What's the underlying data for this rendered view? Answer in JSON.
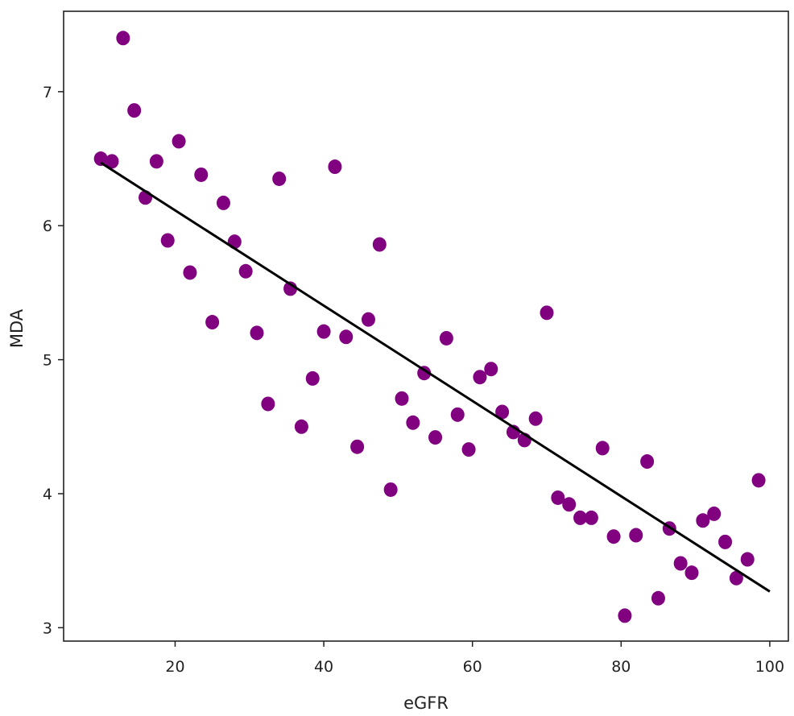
{
  "chart_data": {
    "type": "scatter",
    "title": "",
    "xlabel": "eGFR",
    "ylabel": "MDA",
    "xlim": [
      5,
      102.5
    ],
    "ylim": [
      2.9,
      7.6
    ],
    "xticks": [
      20,
      40,
      60,
      80,
      100
    ],
    "yticks": [
      3,
      4,
      5,
      6,
      7
    ],
    "xtick_labels": [
      "20",
      "40",
      "60",
      "80",
      "100"
    ],
    "ytick_labels": [
      "3",
      "4",
      "5",
      "6",
      "7"
    ],
    "grid": false,
    "point_color": "#800080",
    "line_color": "#000000",
    "points": [
      {
        "x": 10.0,
        "y": 6.5
      },
      {
        "x": 11.5,
        "y": 6.48
      },
      {
        "x": 13.0,
        "y": 7.4
      },
      {
        "x": 14.5,
        "y": 6.86
      },
      {
        "x": 16.0,
        "y": 6.21
      },
      {
        "x": 17.5,
        "y": 6.48
      },
      {
        "x": 19.0,
        "y": 5.89
      },
      {
        "x": 20.5,
        "y": 6.63
      },
      {
        "x": 22.0,
        "y": 5.65
      },
      {
        "x": 23.5,
        "y": 6.38
      },
      {
        "x": 25.0,
        "y": 5.28
      },
      {
        "x": 26.5,
        "y": 6.17
      },
      {
        "x": 28.0,
        "y": 5.88
      },
      {
        "x": 29.5,
        "y": 5.66
      },
      {
        "x": 31.0,
        "y": 5.2
      },
      {
        "x": 32.5,
        "y": 4.67
      },
      {
        "x": 34.0,
        "y": 6.35
      },
      {
        "x": 35.5,
        "y": 5.53
      },
      {
        "x": 37.0,
        "y": 4.5
      },
      {
        "x": 38.5,
        "y": 4.86
      },
      {
        "x": 40.0,
        "y": 5.21
      },
      {
        "x": 41.5,
        "y": 6.44
      },
      {
        "x": 43.0,
        "y": 5.17
      },
      {
        "x": 44.5,
        "y": 4.35
      },
      {
        "x": 46.0,
        "y": 5.3
      },
      {
        "x": 47.5,
        "y": 5.86
      },
      {
        "x": 49.0,
        "y": 4.03
      },
      {
        "x": 50.5,
        "y": 4.71
      },
      {
        "x": 52.0,
        "y": 4.53
      },
      {
        "x": 53.5,
        "y": 4.9
      },
      {
        "x": 55.0,
        "y": 4.42
      },
      {
        "x": 56.5,
        "y": 5.16
      },
      {
        "x": 58.0,
        "y": 4.59
      },
      {
        "x": 59.5,
        "y": 4.33
      },
      {
        "x": 61.0,
        "y": 4.87
      },
      {
        "x": 62.5,
        "y": 4.93
      },
      {
        "x": 64.0,
        "y": 4.61
      },
      {
        "x": 65.5,
        "y": 4.46
      },
      {
        "x": 67.0,
        "y": 4.4
      },
      {
        "x": 68.5,
        "y": 4.56
      },
      {
        "x": 70.0,
        "y": 5.35
      },
      {
        "x": 71.5,
        "y": 3.97
      },
      {
        "x": 73.0,
        "y": 3.92
      },
      {
        "x": 74.5,
        "y": 3.82
      },
      {
        "x": 76.0,
        "y": 3.82
      },
      {
        "x": 77.5,
        "y": 4.34
      },
      {
        "x": 79.0,
        "y": 3.68
      },
      {
        "x": 80.5,
        "y": 3.09
      },
      {
        "x": 82.0,
        "y": 3.69
      },
      {
        "x": 83.5,
        "y": 4.24
      },
      {
        "x": 85.0,
        "y": 3.22
      },
      {
        "x": 86.5,
        "y": 3.74
      },
      {
        "x": 88.0,
        "y": 3.48
      },
      {
        "x": 89.5,
        "y": 3.41
      },
      {
        "x": 91.0,
        "y": 3.8
      },
      {
        "x": 92.5,
        "y": 3.85
      },
      {
        "x": 94.0,
        "y": 3.64
      },
      {
        "x": 95.5,
        "y": 3.37
      },
      {
        "x": 97.0,
        "y": 3.51
      },
      {
        "x": 98.5,
        "y": 4.1
      }
    ],
    "fit_line": {
      "x": [
        10,
        100
      ],
      "y": [
        6.47,
        3.27
      ]
    }
  }
}
